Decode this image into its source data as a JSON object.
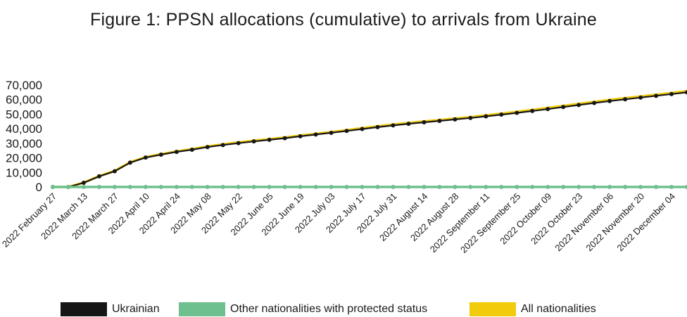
{
  "chart_data": {
    "type": "line",
    "title": "Figure 1: PPSN allocations (cumulative) to arrivals from Ukraine",
    "xlabel": "",
    "ylabel": "",
    "ylim": [
      0,
      70000
    ],
    "yticks": [
      "0",
      "10,000",
      "20,000",
      "30,000",
      "40,000",
      "50,000",
      "60,000",
      "70,000"
    ],
    "xtick_labels": [
      "2022 February 27",
      "2022 March 13",
      "2022 March 27",
      "2022 April 10",
      "2022 April 24",
      "2022 May 08",
      "2022 May 22",
      "2022 June 05",
      "2022 June 19",
      "2022 July 03",
      "2022 July 17",
      "2022 July 31",
      "2022 August 14",
      "2022 August 28",
      "2022 September 11",
      "2022 September 25",
      "2022 October 09",
      "2022 October 23",
      "2022 November 06",
      "2022 November 20",
      "2022 December 04"
    ],
    "x": [
      "2022-02-27",
      "2022-03-06",
      "2022-03-13",
      "2022-03-20",
      "2022-03-27",
      "2022-04-03",
      "2022-04-10",
      "2022-04-17",
      "2022-04-24",
      "2022-05-01",
      "2022-05-08",
      "2022-05-15",
      "2022-05-22",
      "2022-05-29",
      "2022-06-05",
      "2022-06-12",
      "2022-06-19",
      "2022-06-26",
      "2022-07-03",
      "2022-07-10",
      "2022-07-17",
      "2022-07-24",
      "2022-07-31",
      "2022-08-07",
      "2022-08-14",
      "2022-08-21",
      "2022-08-28",
      "2022-09-04",
      "2022-09-11",
      "2022-09-18",
      "2022-09-25",
      "2022-10-02",
      "2022-10-09",
      "2022-10-16",
      "2022-10-23",
      "2022-10-30",
      "2022-11-06",
      "2022-11-13",
      "2022-11-20",
      "2022-11-27",
      "2022-12-04",
      "2022-12-11"
    ],
    "series": [
      {
        "name": "All nationalities",
        "color": "#f2cc0c",
        "values": [
          0,
          0,
          3000,
          7500,
          11000,
          17000,
          20500,
          22500,
          24500,
          26000,
          27800,
          29300,
          30600,
          31800,
          32900,
          34000,
          35300,
          36500,
          37700,
          39000,
          40400,
          41700,
          42900,
          44000,
          45000,
          46000,
          47000,
          48000,
          49200,
          50400,
          51600,
          52900,
          54300,
          55700,
          57100,
          58500,
          59800,
          61000,
          62200,
          63400,
          64600,
          65800
        ]
      },
      {
        "name": "Ukrainian",
        "color": "#161616",
        "values": [
          0,
          0,
          2900,
          7300,
          10800,
          16700,
          20200,
          22200,
          24100,
          25600,
          27400,
          28800,
          30100,
          31300,
          32400,
          33500,
          34800,
          36000,
          37200,
          38500,
          39800,
          41100,
          42300,
          43400,
          44400,
          45400,
          46400,
          47400,
          48500,
          49700,
          50900,
          52200,
          53500,
          54900,
          56300,
          57700,
          59000,
          60200,
          61400,
          62600,
          63800,
          65000
        ]
      },
      {
        "name": "Other nationalities with protected status",
        "color": "#6fc08f",
        "values": [
          0,
          0,
          0,
          0,
          0,
          0,
          0,
          0,
          0,
          0,
          0,
          0,
          0,
          0,
          0,
          0,
          0,
          0,
          0,
          0,
          0,
          0,
          0,
          0,
          0,
          0,
          0,
          0,
          0,
          0,
          0,
          0,
          0,
          0,
          0,
          0,
          0,
          0,
          0,
          0,
          0,
          0
        ]
      }
    ],
    "legend": [
      "Ukrainian",
      "Other nationalities with protected status",
      "All nationalities"
    ],
    "legend_position": "bottom",
    "grid": false
  }
}
